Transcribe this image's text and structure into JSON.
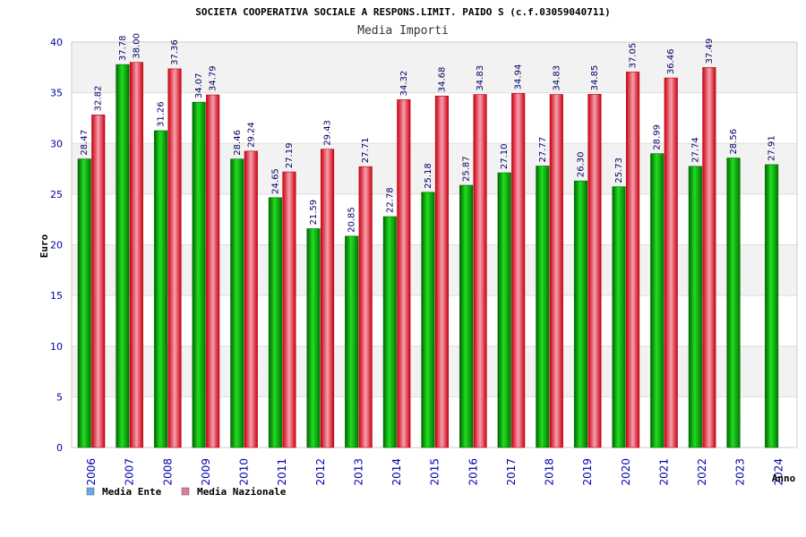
{
  "chart_data": {
    "type": "bar",
    "title": "SOCIETA COOPERATIVA SOCIALE A RESPONS.LIMIT. PAIDO S (c.f.03059040711)",
    "subtitle": "Media Importi",
    "ylabel": "Euro",
    "xlabel": "Anno",
    "ylim": [
      0,
      40
    ],
    "yticks": [
      0,
      5,
      10,
      15,
      20,
      25,
      30,
      35,
      40
    ],
    "grid": "horizontal bands",
    "legend_position": "bottom-left",
    "categories": [
      "2006",
      "2007",
      "2008",
      "2009",
      "2010",
      "2011",
      "2012",
      "2013",
      "2014",
      "2015",
      "2016",
      "2017",
      "2018",
      "2019",
      "2020",
      "2021",
      "2022",
      "2023",
      "2024"
    ],
    "series": [
      {
        "name": "Media Ente",
        "color": "#00bb00",
        "legend_color": "#66aaee",
        "values": [
          28.47,
          37.78,
          31.26,
          34.07,
          28.46,
          24.65,
          21.59,
          20.85,
          22.78,
          25.18,
          25.87,
          27.1,
          27.77,
          26.3,
          25.73,
          28.99,
          27.74,
          28.56,
          27.91
        ],
        "labels": [
          "28.47",
          "37.78",
          "31.26",
          "34.07",
          "28.46",
          "24.65",
          "21.59",
          "20.85",
          "22.78",
          "25.18",
          "25.87",
          "27.10",
          "27.77",
          "26.30",
          "25.73",
          "28.99",
          "27.74",
          "28.56",
          "27.91"
        ]
      },
      {
        "name": "Media Nazionale",
        "color": "#ee3344",
        "legend_color": "#e07aa8",
        "values": [
          32.82,
          38.0,
          37.36,
          34.79,
          29.24,
          27.19,
          29.43,
          27.71,
          34.32,
          34.68,
          34.83,
          34.94,
          34.83,
          34.85,
          37.05,
          36.46,
          37.49,
          null,
          null
        ],
        "labels": [
          "32.82",
          "38.00",
          "37.36",
          "34.79",
          "29.24",
          "27.19",
          "29.43",
          "27.71",
          "34.32",
          "34.68",
          "34.83",
          "34.94",
          "34.83",
          "34.85",
          "37.05",
          "36.46",
          "37.49",
          null,
          null
        ]
      }
    ]
  }
}
